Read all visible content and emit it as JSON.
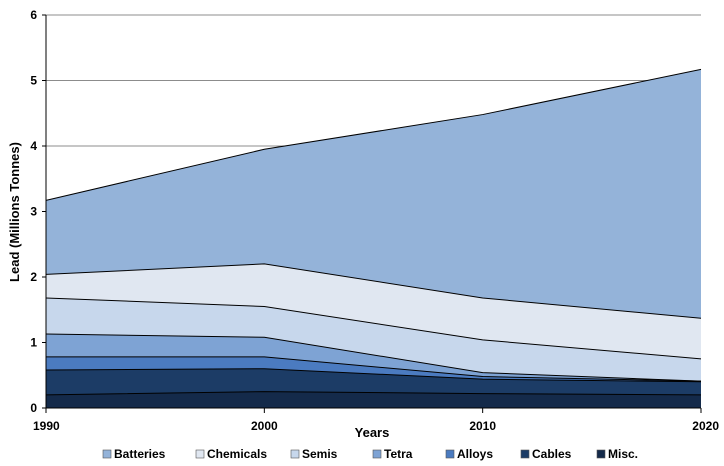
{
  "chart_data": {
    "type": "area",
    "stacked": true,
    "title": "",
    "xlabel": "Years",
    "ylabel": "Lead (Millions Tonnes)",
    "x": [
      1990,
      2000,
      2010,
      2020
    ],
    "x_ticks": [
      "1990",
      "2000",
      "2010",
      "2020"
    ],
    "y_ticks": [
      "0",
      "1",
      "2",
      "3",
      "4",
      "5",
      "6"
    ],
    "ylim": [
      0,
      6
    ],
    "grid": "horizontal",
    "legend_position": "bottom",
    "series": [
      {
        "name": "Misc.",
        "values": [
          0.2,
          0.25,
          0.22,
          0.2
        ],
        "color": "#142a4a"
      },
      {
        "name": "Cables",
        "values": [
          0.38,
          0.35,
          0.22,
          0.2
        ],
        "color": "#1c3c66"
      },
      {
        "name": "Alloys",
        "values": [
          0.2,
          0.18,
          0.04,
          0.01
        ],
        "color": "#4b7bc0"
      },
      {
        "name": "Tetra",
        "values": [
          0.35,
          0.3,
          0.06,
          0.0
        ],
        "color": "#7ea3d4"
      },
      {
        "name": "Semis",
        "values": [
          0.55,
          0.47,
          0.5,
          0.34
        ],
        "color": "#c7d7ec"
      },
      {
        "name": "Chemicals",
        "values": [
          0.36,
          0.65,
          0.64,
          0.62
        ],
        "color": "#e0e7f1"
      },
      {
        "name": "Batteries",
        "values": [
          1.13,
          1.75,
          2.8,
          3.8
        ],
        "color": "#94b3d9"
      }
    ]
  }
}
